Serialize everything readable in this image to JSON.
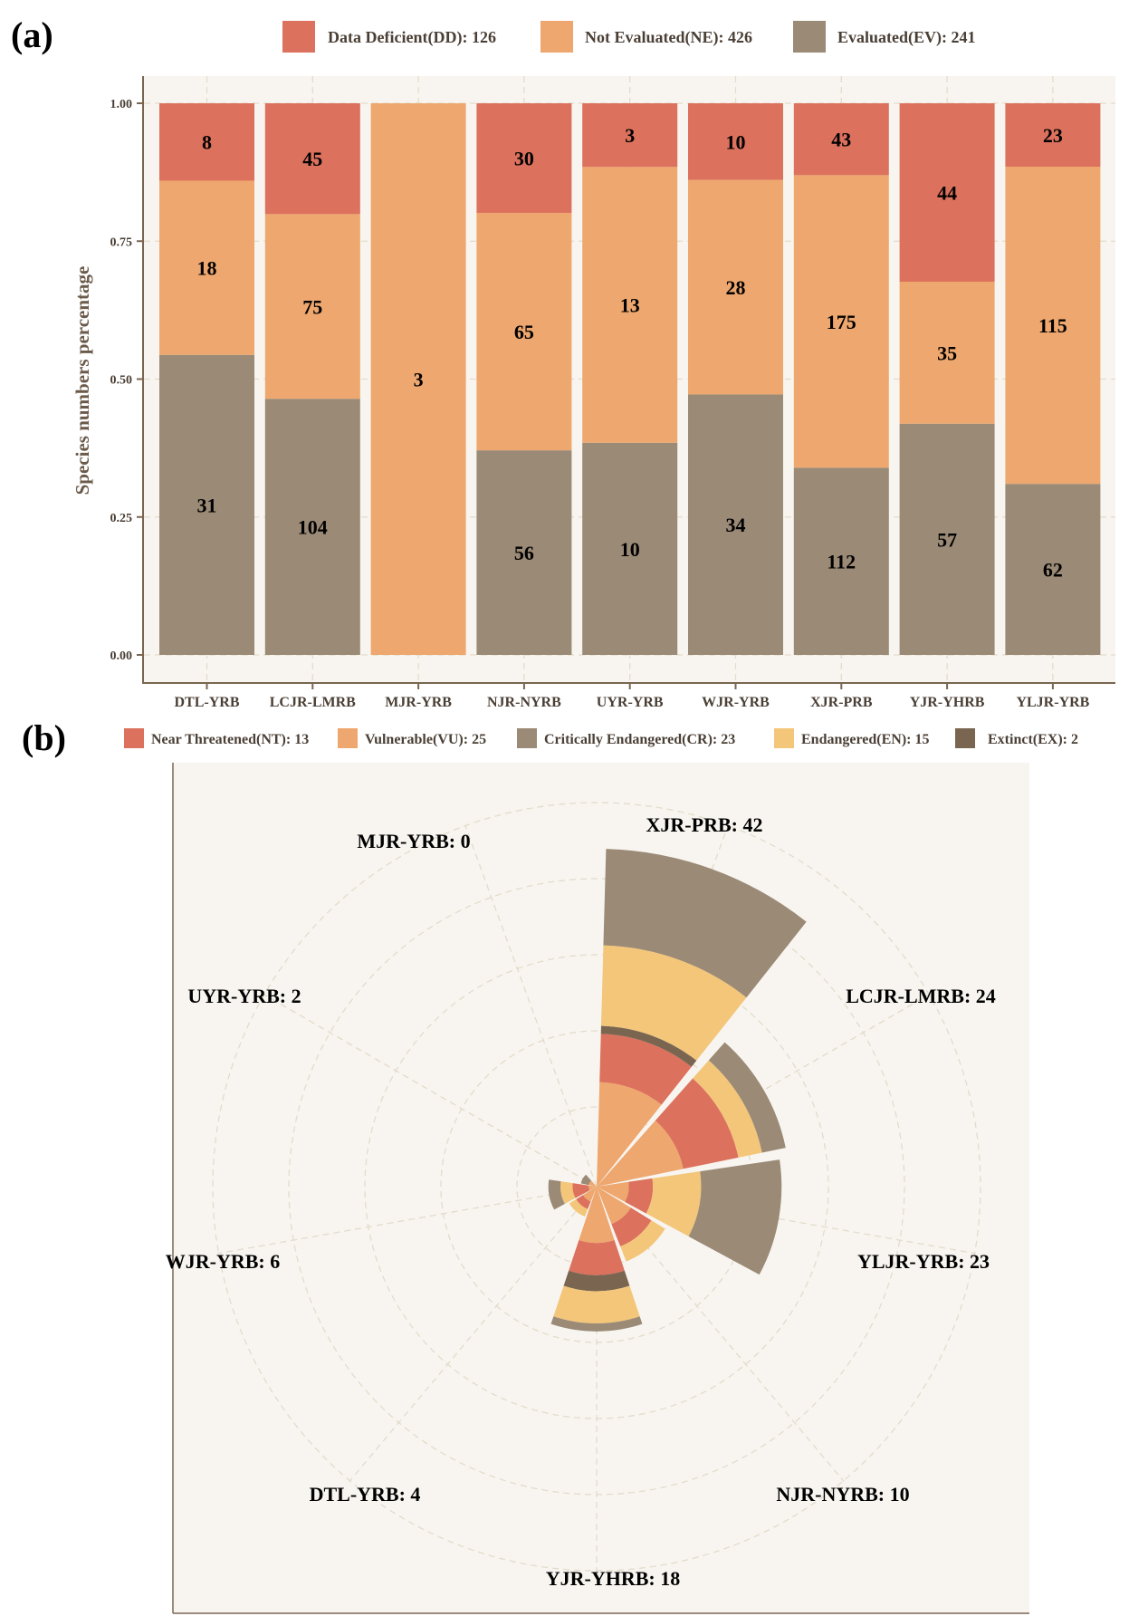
{
  "chart_data": [
    {
      "id": "a",
      "panel_label": "(a)",
      "type": "bar",
      "stacked": "percent",
      "ylabel": "Species numbers percentage",
      "xlabel": "",
      "ylim": [
        0,
        1
      ],
      "yticks": [
        "0.00",
        "0.25",
        "0.50",
        "0.75",
        "1.00"
      ],
      "grid": true,
      "legend_position": "top",
      "categories": [
        "DTL-YRB",
        "LCJR-LMRB",
        "MJR-YRB",
        "NJR-NYRB",
        "UYR-YRB",
        "WJR-YRB",
        "XJR-PRB",
        "YJR-YHRB",
        "YLJR-YRB"
      ],
      "series": [
        {
          "key": "EV",
          "name": "Evaluated(EV): 241",
          "color": "#9a8a76",
          "values": [
            31,
            104,
            0,
            56,
            10,
            34,
            112,
            57,
            62
          ]
        },
        {
          "key": "NE",
          "name": "Not Evaluated(NE): 426",
          "color": "#eea76e",
          "values": [
            18,
            75,
            3,
            65,
            13,
            28,
            175,
            35,
            115
          ]
        },
        {
          "key": "DD",
          "name": "Data Deficient(DD): 126",
          "color": "#dc715d",
          "values": [
            8,
            45,
            0,
            30,
            3,
            10,
            43,
            44,
            23
          ]
        }
      ],
      "legend_order": [
        "DD",
        "NE",
        "EV"
      ]
    },
    {
      "id": "b",
      "panel_label": "(b)",
      "type": "bar",
      "coord": "polar",
      "note": "stacked counts per region (per-category values estimated from ring radii; totals as labeled)",
      "legend_position": "top",
      "grid": true,
      "categories": [
        "XJR-PRB",
        "LCJR-LMRB",
        "YLJR-YRB",
        "NJR-NYRB",
        "YJR-YHRB",
        "DTL-YRB",
        "WJR-YRB",
        "UYR-YRB",
        "MJR-YRB"
      ],
      "category_labels": [
        "XJR-PRB: 42",
        "LCJR-LMRB: 24",
        "YLJR-YRB: 23",
        "NJR-NYRB: 10",
        "YJR-YHRB: 18",
        "DTL-YRB: 4",
        "WJR-YRB: 6",
        "UYR-YRB: 2",
        "MJR-YRB: 0"
      ],
      "totals": [
        42,
        24,
        23,
        10,
        18,
        4,
        6,
        2,
        0
      ],
      "radial_max": 47,
      "series": [
        {
          "key": "VU",
          "name": "Vulnerable(VU): 25",
          "color": "#eea76e",
          "values": [
            13,
            11,
            4,
            5,
            7,
            2,
            1,
            1,
            0
          ]
        },
        {
          "key": "NT",
          "name": "Near Threatened(NT): 13",
          "color": "#dc715d",
          "values": [
            6,
            7,
            3,
            3,
            4,
            1,
            2,
            0,
            0
          ]
        },
        {
          "key": "EX",
          "name": "Extinct(EX): 2",
          "color": "#7a6650",
          "values": [
            1,
            0,
            0,
            0,
            2,
            0,
            0,
            0,
            0
          ]
        },
        {
          "key": "EN",
          "name": "Endangered(EN): 15",
          "color": "#f3c67a",
          "values": [
            10,
            3,
            6,
            2,
            4,
            1,
            1.5,
            0,
            0
          ]
        },
        {
          "key": "CR",
          "name": "Critically Endangered(CR): 23",
          "color": "#9a8a76",
          "values": [
            12,
            3,
            10,
            0,
            1,
            0,
            1.5,
            1,
            0
          ]
        }
      ],
      "legend_order": [
        "NT",
        "VU",
        "CR",
        "EN",
        "EX"
      ]
    }
  ]
}
